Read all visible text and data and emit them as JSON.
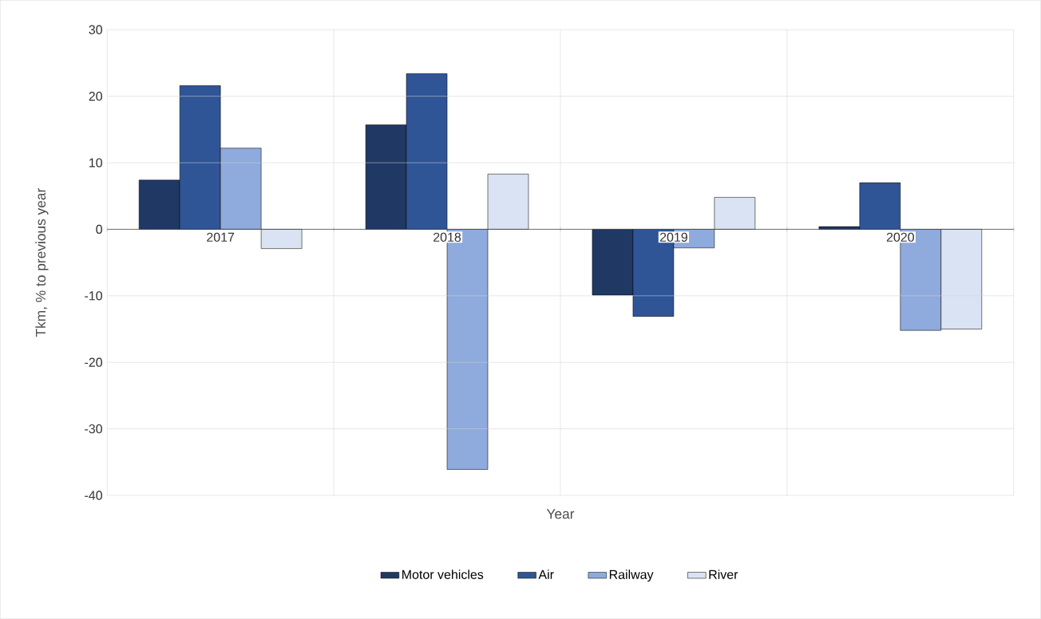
{
  "chart_data": {
    "type": "bar",
    "xlabel": "Year",
    "ylabel": "Tkm, % to previous year",
    "categories": [
      "2017",
      "2018",
      "2019",
      "2020"
    ],
    "series": [
      {
        "name": "Motor vehicles",
        "color": "#203864",
        "values": [
          7.4,
          15.7,
          -9.9,
          0.4
        ]
      },
      {
        "name": "Air",
        "color": "#2f5597",
        "values": [
          21.6,
          23.4,
          -13.1,
          7.0
        ]
      },
      {
        "name": "Railway",
        "color": "#8faadc",
        "values": [
          12.2,
          -36.1,
          -2.8,
          -15.2
        ]
      },
      {
        "name": "River",
        "color": "#dae3f3",
        "values": [
          -2.9,
          8.3,
          4.8,
          -15.0
        ]
      }
    ],
    "ylim": [
      -40,
      30
    ],
    "yticks": [
      -40,
      -30,
      -20,
      -10,
      0,
      10,
      20,
      30
    ],
    "grid": true,
    "legend": "bottom"
  }
}
